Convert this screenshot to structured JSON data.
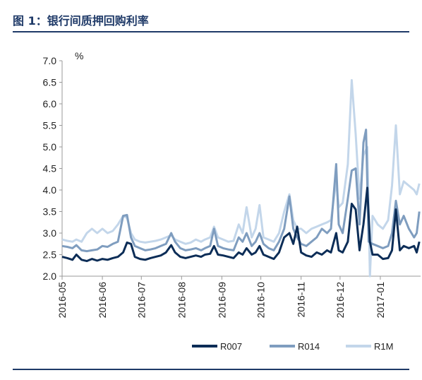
{
  "header": {
    "title": "图 1：银行间质押回购利率"
  },
  "chart_data": {
    "type": "line",
    "title": "图 1：银行间质押回购利率",
    "ylabel": "%",
    "xlabel": "",
    "ylim": [
      2.0,
      7.0
    ],
    "yticks": [
      "7.0",
      "6.5",
      "6.0",
      "5.5",
      "5.0",
      "4.5",
      "4.0",
      "3.5",
      "3.0",
      "2.5",
      "2.0"
    ],
    "xlim": [
      "2016-05-01",
      "2017-01-31"
    ],
    "xticks": [
      "2016-05",
      "2016-06",
      "2016-07",
      "2016-08",
      "2016-09",
      "2016-10",
      "2016-11",
      "2016-12",
      "2017-01"
    ],
    "grid": false,
    "legend": "bottom",
    "series": [
      {
        "name": "R007",
        "color": "#0c2d57",
        "points": [
          [
            "2016-05-01",
            2.45
          ],
          [
            "2016-05-05",
            2.42
          ],
          [
            "2016-05-09",
            2.38
          ],
          [
            "2016-05-12",
            2.5
          ],
          [
            "2016-05-16",
            2.38
          ],
          [
            "2016-05-20",
            2.35
          ],
          [
            "2016-05-24",
            2.4
          ],
          [
            "2016-05-28",
            2.36
          ],
          [
            "2016-06-01",
            2.4
          ],
          [
            "2016-06-05",
            2.38
          ],
          [
            "2016-06-09",
            2.42
          ],
          [
            "2016-06-13",
            2.45
          ],
          [
            "2016-06-17",
            2.55
          ],
          [
            "2016-06-20",
            2.78
          ],
          [
            "2016-06-23",
            2.75
          ],
          [
            "2016-06-26",
            2.45
          ],
          [
            "2016-06-30",
            2.4
          ],
          [
            "2016-07-04",
            2.38
          ],
          [
            "2016-07-08",
            2.42
          ],
          [
            "2016-07-12",
            2.45
          ],
          [
            "2016-07-16",
            2.48
          ],
          [
            "2016-07-20",
            2.55
          ],
          [
            "2016-07-24",
            2.72
          ],
          [
            "2016-07-27",
            2.55
          ],
          [
            "2016-07-31",
            2.45
          ],
          [
            "2016-08-04",
            2.42
          ],
          [
            "2016-08-08",
            2.45
          ],
          [
            "2016-08-12",
            2.48
          ],
          [
            "2016-08-16",
            2.45
          ],
          [
            "2016-08-19",
            2.5
          ],
          [
            "2016-08-23",
            2.52
          ],
          [
            "2016-08-26",
            2.7
          ],
          [
            "2016-08-29",
            2.5
          ],
          [
            "2016-09-02",
            2.48
          ],
          [
            "2016-09-06",
            2.45
          ],
          [
            "2016-09-10",
            2.42
          ],
          [
            "2016-09-14",
            2.55
          ],
          [
            "2016-09-17",
            2.5
          ],
          [
            "2016-09-20",
            2.65
          ],
          [
            "2016-09-24",
            2.5
          ],
          [
            "2016-09-27",
            2.55
          ],
          [
            "2016-09-30",
            2.7
          ],
          [
            "2016-10-03",
            2.5
          ],
          [
            "2016-10-07",
            2.45
          ],
          [
            "2016-10-11",
            2.4
          ],
          [
            "2016-10-15",
            2.55
          ],
          [
            "2016-10-19",
            2.9
          ],
          [
            "2016-10-23",
            3.0
          ],
          [
            "2016-10-26",
            2.75
          ],
          [
            "2016-10-29",
            3.15
          ],
          [
            "2016-11-01",
            2.55
          ],
          [
            "2016-11-05",
            2.48
          ],
          [
            "2016-11-09",
            2.45
          ],
          [
            "2016-11-13",
            2.55
          ],
          [
            "2016-11-17",
            2.5
          ],
          [
            "2016-11-21",
            2.6
          ],
          [
            "2016-11-24",
            2.55
          ],
          [
            "2016-11-28",
            3.0
          ],
          [
            "2016-11-30",
            2.6
          ],
          [
            "2016-12-03",
            2.55
          ],
          [
            "2016-12-07",
            2.8
          ],
          [
            "2016-12-10",
            3.68
          ],
          [
            "2016-12-13",
            3.55
          ],
          [
            "2016-12-16",
            2.6
          ],
          [
            "2016-12-19",
            3.2
          ],
          [
            "2016-12-22",
            4.05
          ],
          [
            "2016-12-24",
            2.8
          ],
          [
            "2016-12-26",
            2.5
          ],
          [
            "2016-12-30",
            2.5
          ],
          [
            "2017-01-03",
            2.4
          ],
          [
            "2017-01-07",
            2.42
          ],
          [
            "2017-01-10",
            2.6
          ],
          [
            "2017-01-13",
            3.55
          ],
          [
            "2017-01-16",
            2.6
          ],
          [
            "2017-01-19",
            2.7
          ],
          [
            "2017-01-23",
            2.65
          ],
          [
            "2017-01-27",
            2.7
          ],
          [
            "2017-01-29",
            2.55
          ],
          [
            "2017-01-31",
            2.8
          ]
        ]
      },
      {
        "name": "R014",
        "color": "#7f9dbf",
        "points": [
          [
            "2016-05-01",
            2.7
          ],
          [
            "2016-05-05",
            2.68
          ],
          [
            "2016-05-09",
            2.65
          ],
          [
            "2016-05-12",
            2.72
          ],
          [
            "2016-05-16",
            2.6
          ],
          [
            "2016-05-20",
            2.58
          ],
          [
            "2016-05-24",
            2.6
          ],
          [
            "2016-05-28",
            2.62
          ],
          [
            "2016-06-01",
            2.7
          ],
          [
            "2016-06-05",
            2.68
          ],
          [
            "2016-06-09",
            2.75
          ],
          [
            "2016-06-13",
            2.8
          ],
          [
            "2016-06-17",
            3.4
          ],
          [
            "2016-06-20",
            3.42
          ],
          [
            "2016-06-23",
            2.9
          ],
          [
            "2016-06-26",
            2.7
          ],
          [
            "2016-06-30",
            2.65
          ],
          [
            "2016-07-04",
            2.6
          ],
          [
            "2016-07-08",
            2.62
          ],
          [
            "2016-07-12",
            2.65
          ],
          [
            "2016-07-16",
            2.7
          ],
          [
            "2016-07-20",
            2.75
          ],
          [
            "2016-07-24",
            3.0
          ],
          [
            "2016-07-27",
            2.8
          ],
          [
            "2016-07-31",
            2.65
          ],
          [
            "2016-08-04",
            2.6
          ],
          [
            "2016-08-08",
            2.62
          ],
          [
            "2016-08-12",
            2.65
          ],
          [
            "2016-08-16",
            2.6
          ],
          [
            "2016-08-19",
            2.65
          ],
          [
            "2016-08-23",
            2.7
          ],
          [
            "2016-08-26",
            3.1
          ],
          [
            "2016-08-29",
            2.7
          ],
          [
            "2016-09-02",
            2.65
          ],
          [
            "2016-09-06",
            2.62
          ],
          [
            "2016-09-10",
            2.6
          ],
          [
            "2016-09-14",
            2.9
          ],
          [
            "2016-09-17",
            2.8
          ],
          [
            "2016-09-20",
            3.0
          ],
          [
            "2016-09-24",
            2.7
          ],
          [
            "2016-09-27",
            2.8
          ],
          [
            "2016-09-30",
            3.0
          ],
          [
            "2016-10-03",
            2.75
          ],
          [
            "2016-10-07",
            2.65
          ],
          [
            "2016-10-11",
            2.6
          ],
          [
            "2016-10-15",
            2.8
          ],
          [
            "2016-10-19",
            3.1
          ],
          [
            "2016-10-23",
            3.85
          ],
          [
            "2016-10-26",
            3.1
          ],
          [
            "2016-10-29",
            2.9
          ],
          [
            "2016-11-01",
            2.75
          ],
          [
            "2016-11-05",
            2.7
          ],
          [
            "2016-11-09",
            2.8
          ],
          [
            "2016-11-13",
            2.9
          ],
          [
            "2016-11-17",
            3.1
          ],
          [
            "2016-11-21",
            3.0
          ],
          [
            "2016-11-24",
            3.1
          ],
          [
            "2016-11-28",
            4.6
          ],
          [
            "2016-11-30",
            3.2
          ],
          [
            "2016-12-03",
            3.0
          ],
          [
            "2016-12-07",
            3.8
          ],
          [
            "2016-12-10",
            4.45
          ],
          [
            "2016-12-13",
            4.5
          ],
          [
            "2016-12-16",
            3.2
          ],
          [
            "2016-12-19",
            5.1
          ],
          [
            "2016-12-21",
            5.4
          ],
          [
            "2016-12-23",
            2.8
          ],
          [
            "2016-12-26",
            2.75
          ],
          [
            "2016-12-30",
            2.7
          ],
          [
            "2017-01-03",
            2.65
          ],
          [
            "2017-01-07",
            2.7
          ],
          [
            "2017-01-10",
            3.0
          ],
          [
            "2017-01-13",
            3.75
          ],
          [
            "2017-01-16",
            3.2
          ],
          [
            "2017-01-19",
            3.4
          ],
          [
            "2017-01-23",
            3.1
          ],
          [
            "2017-01-27",
            2.9
          ],
          [
            "2017-01-29",
            3.0
          ],
          [
            "2017-01-31",
            3.5
          ]
        ]
      },
      {
        "name": "R1M",
        "color": "#c3d6ea",
        "points": [
          [
            "2016-05-01",
            2.85
          ],
          [
            "2016-05-05",
            2.82
          ],
          [
            "2016-05-09",
            2.8
          ],
          [
            "2016-05-12",
            2.85
          ],
          [
            "2016-05-16",
            2.8
          ],
          [
            "2016-05-20",
            3.0
          ],
          [
            "2016-05-24",
            3.1
          ],
          [
            "2016-05-28",
            3.0
          ],
          [
            "2016-06-01",
            3.1
          ],
          [
            "2016-06-05",
            3.0
          ],
          [
            "2016-06-09",
            3.05
          ],
          [
            "2016-06-13",
            3.2
          ],
          [
            "2016-06-17",
            3.4
          ],
          [
            "2016-06-20",
            3.35
          ],
          [
            "2016-06-23",
            3.0
          ],
          [
            "2016-06-26",
            2.85
          ],
          [
            "2016-06-30",
            2.8
          ],
          [
            "2016-07-04",
            2.78
          ],
          [
            "2016-07-08",
            2.8
          ],
          [
            "2016-07-12",
            2.82
          ],
          [
            "2016-07-16",
            2.85
          ],
          [
            "2016-07-20",
            2.9
          ],
          [
            "2016-07-24",
            2.95
          ],
          [
            "2016-07-27",
            2.85
          ],
          [
            "2016-07-31",
            2.8
          ],
          [
            "2016-08-04",
            2.75
          ],
          [
            "2016-08-08",
            2.78
          ],
          [
            "2016-08-12",
            2.85
          ],
          [
            "2016-08-16",
            2.8
          ],
          [
            "2016-08-19",
            2.85
          ],
          [
            "2016-08-23",
            2.9
          ],
          [
            "2016-08-26",
            3.15
          ],
          [
            "2016-08-29",
            2.9
          ],
          [
            "2016-09-02",
            2.85
          ],
          [
            "2016-09-06",
            2.8
          ],
          [
            "2016-09-10",
            2.82
          ],
          [
            "2016-09-14",
            3.2
          ],
          [
            "2016-09-17",
            3.0
          ],
          [
            "2016-09-20",
            3.6
          ],
          [
            "2016-09-24",
            2.9
          ],
          [
            "2016-09-27",
            3.1
          ],
          [
            "2016-09-30",
            3.65
          ],
          [
            "2016-10-03",
            2.9
          ],
          [
            "2016-10-07",
            2.85
          ],
          [
            "2016-10-11",
            2.8
          ],
          [
            "2016-10-15",
            3.0
          ],
          [
            "2016-10-19",
            3.5
          ],
          [
            "2016-10-23",
            3.9
          ],
          [
            "2016-10-26",
            3.3
          ],
          [
            "2016-10-29",
            3.1
          ],
          [
            "2016-11-01",
            3.1
          ],
          [
            "2016-11-05",
            3.0
          ],
          [
            "2016-11-09",
            3.1
          ],
          [
            "2016-11-13",
            3.15
          ],
          [
            "2016-11-17",
            3.2
          ],
          [
            "2016-11-21",
            3.25
          ],
          [
            "2016-11-24",
            3.3
          ],
          [
            "2016-11-28",
            4.2
          ],
          [
            "2016-11-30",
            3.6
          ],
          [
            "2016-12-03",
            3.7
          ],
          [
            "2016-12-07",
            4.6
          ],
          [
            "2016-12-10",
            6.55
          ],
          [
            "2016-12-13",
            5.3
          ],
          [
            "2016-12-16",
            3.8
          ],
          [
            "2016-12-19",
            4.8
          ],
          [
            "2016-12-22",
            5.0
          ],
          [
            "2016-12-24",
            2.0
          ],
          [
            "2016-12-26",
            3.4
          ],
          [
            "2016-12-30",
            3.2
          ],
          [
            "2017-01-03",
            3.1
          ],
          [
            "2017-01-07",
            3.3
          ],
          [
            "2017-01-10",
            4.1
          ],
          [
            "2017-01-13",
            5.5
          ],
          [
            "2017-01-16",
            3.9
          ],
          [
            "2017-01-19",
            4.2
          ],
          [
            "2017-01-23",
            4.1
          ],
          [
            "2017-01-27",
            4.0
          ],
          [
            "2017-01-29",
            3.9
          ],
          [
            "2017-01-31",
            4.15
          ]
        ]
      }
    ]
  }
}
